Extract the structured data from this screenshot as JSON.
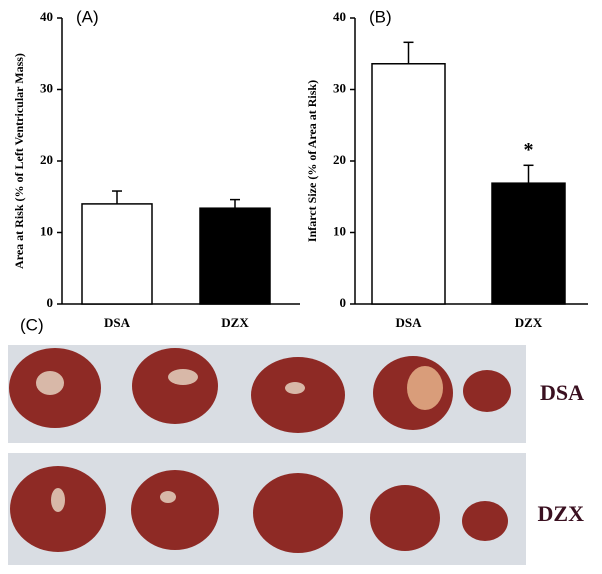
{
  "chart_data": [
    {
      "type": "bar",
      "panel_label": "(A)",
      "ylabel": "Area at Risk (% of Left Ventricular Mass)",
      "categories": [
        "DSA",
        "DZX"
      ],
      "values": [
        14,
        13.4
      ],
      "errors": [
        1.8,
        1.2
      ],
      "colors": [
        "#ffffff",
        "#000000"
      ],
      "ylim": [
        0,
        40
      ],
      "yticks": [
        0,
        10,
        20,
        30,
        40
      ]
    },
    {
      "type": "bar",
      "panel_label": "(B)",
      "ylabel": "Infarct Size (% of Area at Risk)",
      "categories": [
        "DSA",
        "DZX"
      ],
      "values": [
        33.6,
        16.9
      ],
      "errors": [
        3,
        2.5
      ],
      "colors": [
        "#ffffff",
        "#000000"
      ],
      "ylim": [
        0,
        40
      ],
      "yticks": [
        0,
        10,
        20,
        30,
        40
      ],
      "annotation": "*"
    }
  ],
  "panel_c": {
    "label": "(C)",
    "rows": [
      "DSA",
      "DZX"
    ]
  }
}
